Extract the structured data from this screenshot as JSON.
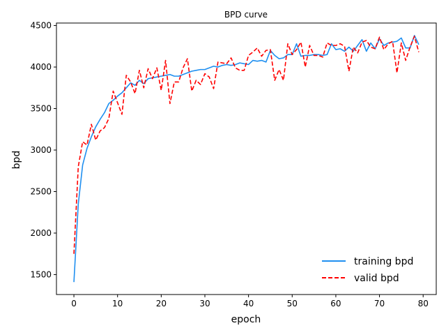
{
  "chart_data": {
    "type": "line",
    "title": "BPD curve",
    "xlabel": "epoch",
    "ylabel": "bpd",
    "xlim": [
      -4,
      83
    ],
    "ylim": [
      1260,
      4530
    ],
    "xticks": [
      0,
      10,
      20,
      30,
      40,
      50,
      60,
      70,
      80
    ],
    "yticks": [
      1500,
      2000,
      2500,
      3000,
      3500,
      4000,
      4500
    ],
    "grid": false,
    "legend_position": "lower-right",
    "x": [
      0,
      1,
      2,
      3,
      4,
      5,
      6,
      7,
      8,
      9,
      10,
      11,
      12,
      13,
      14,
      15,
      16,
      17,
      18,
      19,
      20,
      21,
      22,
      23,
      24,
      25,
      26,
      27,
      28,
      29,
      30,
      31,
      32,
      33,
      34,
      35,
      36,
      37,
      38,
      39,
      40,
      41,
      42,
      43,
      44,
      45,
      46,
      47,
      48,
      49,
      50,
      51,
      52,
      53,
      54,
      55,
      56,
      57,
      58,
      59,
      60,
      61,
      62,
      63,
      64,
      65,
      66,
      67,
      68,
      69,
      70,
      71,
      72,
      73,
      74,
      75,
      76,
      77,
      78,
      79
    ],
    "series": [
      {
        "name": "training bpd",
        "color": "#1f8ff0",
        "style": "solid",
        "values": [
          1410,
          2350,
          2820,
          3020,
          3160,
          3280,
          3370,
          3450,
          3560,
          3600,
          3650,
          3690,
          3750,
          3810,
          3780,
          3840,
          3800,
          3860,
          3870,
          3880,
          3890,
          3900,
          3910,
          3890,
          3890,
          3910,
          3930,
          3950,
          3960,
          3970,
          3970,
          3990,
          4010,
          4000,
          4020,
          4030,
          4020,
          4030,
          4050,
          4040,
          4030,
          4080,
          4070,
          4080,
          4060,
          4200,
          4140,
          4100,
          4110,
          4150,
          4150,
          4280,
          4130,
          4140,
          4140,
          4150,
          4150,
          4140,
          4150,
          4280,
          4210,
          4220,
          4190,
          4240,
          4190,
          4260,
          4330,
          4190,
          4290,
          4220,
          4340,
          4260,
          4290,
          4300,
          4310,
          4350,
          4230,
          4230,
          4380,
          4270
        ]
      },
      {
        "name": "valid bpd",
        "color": "#ff0000",
        "style": "dashed",
        "values": [
          1750,
          2800,
          3100,
          3060,
          3310,
          3120,
          3230,
          3270,
          3380,
          3710,
          3570,
          3430,
          3900,
          3820,
          3680,
          3960,
          3750,
          3980,
          3860,
          3990,
          3720,
          4080,
          3560,
          3820,
          3820,
          3990,
          4100,
          3710,
          3840,
          3790,
          3920,
          3880,
          3740,
          4060,
          4050,
          4040,
          4110,
          3990,
          3960,
          3960,
          4140,
          4180,
          4230,
          4130,
          4200,
          4210,
          3840,
          3970,
          3840,
          4280,
          4150,
          4210,
          4300,
          4000,
          4260,
          4140,
          4140,
          4120,
          4290,
          4260,
          4260,
          4280,
          4250,
          3950,
          4240,
          4170,
          4300,
          4320,
          4240,
          4220,
          4360,
          4210,
          4280,
          4310,
          3930,
          4290,
          4080,
          4240,
          4370,
          4180
        ]
      }
    ]
  }
}
